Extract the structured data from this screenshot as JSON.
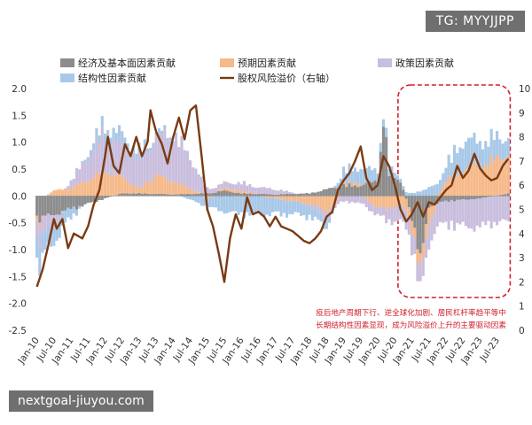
{
  "watermarks": {
    "top": "TG: MYYJJPP",
    "bottom": "nextgoal-jiuyou.com"
  },
  "chart_data": {
    "type": "bar",
    "stacked": true,
    "x_start": "2010-01",
    "x_end": "2023-11",
    "x_ticks": [
      "Jan-10",
      "Jul-10",
      "Jan-11",
      "Jul-11",
      "Jan-12",
      "Jul-12",
      "Jan-13",
      "Jul-13",
      "Jan-14",
      "Jul-14",
      "Jan-15",
      "Jul-15",
      "Jan-16",
      "Jul-16",
      "Jan-17",
      "Jul-17",
      "Jan-18",
      "Jul-18",
      "Jan-19",
      "Jul-19",
      "Jan-20",
      "Jul-20",
      "Jan-21",
      "Jul-21",
      "Jan-22",
      "Jul-22",
      "Jan-23",
      "Jul-23"
    ],
    "y_left": {
      "min": -2.5,
      "max": 2.0,
      "step": 0.5,
      "ticks": [
        "2.0",
        "1.5",
        "1.0",
        "0.5",
        "0.0",
        "-0.5",
        "-1.0",
        "-1.5",
        "-2.0",
        "-2.5"
      ]
    },
    "y_right": {
      "min": 0,
      "max": 10,
      "step": 1,
      "ticks": [
        "10",
        "9",
        "8",
        "7",
        "6",
        "5",
        "4",
        "3",
        "2",
        "1",
        "0"
      ]
    },
    "series": [
      {
        "name": "经济及基本面因素贡献",
        "kind": "bar",
        "color": "#8c8c8c",
        "anchors": [
          [
            "2010-01",
            -0.45
          ],
          [
            "2010-07",
            -0.35
          ],
          [
            "2011-01",
            -0.25
          ],
          [
            "2011-07",
            -0.15
          ],
          [
            "2012-01",
            -0.05
          ],
          [
            "2012-07",
            0.05
          ],
          [
            "2013-01",
            0.05
          ],
          [
            "2014-01",
            0.03
          ],
          [
            "2015-01",
            0.05
          ],
          [
            "2015-07",
            0.1
          ],
          [
            "2016-01",
            0.05
          ],
          [
            "2017-01",
            0.03
          ],
          [
            "2018-01",
            0.05
          ],
          [
            "2019-01",
            0.2
          ],
          [
            "2019-07",
            0.2
          ],
          [
            "2020-01",
            0.3
          ],
          [
            "2020-03",
            1.55
          ],
          [
            "2020-05",
            0.4
          ],
          [
            "2020-09",
            0.3
          ],
          [
            "2021-01",
            -0.4
          ],
          [
            "2021-04",
            -1.3
          ],
          [
            "2021-07",
            -0.2
          ],
          [
            "2022-01",
            -0.1
          ],
          [
            "2023-01",
            -0.05
          ],
          [
            "2023-11",
            0.05
          ]
        ]
      },
      {
        "name": "预期因素贡献",
        "kind": "bar",
        "color": "#f5b98a",
        "anchors": [
          [
            "2010-01",
            -0.1
          ],
          [
            "2010-07",
            0.1
          ],
          [
            "2011-01",
            0.15
          ],
          [
            "2011-07",
            0.3
          ],
          [
            "2012-01",
            0.5
          ],
          [
            "2012-07",
            0.3
          ],
          [
            "2013-01",
            0.1
          ],
          [
            "2013-07",
            0.35
          ],
          [
            "2014-01",
            0.25
          ],
          [
            "2014-07",
            0.1
          ],
          [
            "2015-01",
            -0.05
          ],
          [
            "2015-07",
            0.05
          ],
          [
            "2016-01",
            0.05
          ],
          [
            "2017-01",
            -0.05
          ],
          [
            "2018-01",
            -0.15
          ],
          [
            "2018-07",
            -0.3
          ],
          [
            "2019-01",
            0.05
          ],
          [
            "2019-07",
            0.05
          ],
          [
            "2020-01",
            -0.25
          ],
          [
            "2020-07",
            -0.2
          ],
          [
            "2021-01",
            -0.2
          ],
          [
            "2021-07",
            -0.3
          ],
          [
            "2022-01",
            0.3
          ],
          [
            "2022-07",
            0.5
          ],
          [
            "2023-01",
            0.6
          ],
          [
            "2023-07",
            0.7
          ],
          [
            "2023-11",
            0.75
          ]
        ]
      },
      {
        "name": "政策因素贡献",
        "kind": "bar",
        "color": "#c9bedd",
        "anchors": [
          [
            "2010-01",
            -0.35
          ],
          [
            "2010-07",
            -0.25
          ],
          [
            "2011-01",
            0.15
          ],
          [
            "2011-07",
            0.45
          ],
          [
            "2012-01",
            0.7
          ],
          [
            "2012-07",
            0.6
          ],
          [
            "2013-01",
            0.6
          ],
          [
            "2013-07",
            0.7
          ],
          [
            "2014-01",
            0.9
          ],
          [
            "2014-07",
            0.6
          ],
          [
            "2015-01",
            0.1
          ],
          [
            "2015-07",
            0.1
          ],
          [
            "2016-01",
            0.15
          ],
          [
            "2017-01",
            0.1
          ],
          [
            "2018-01",
            -0.05
          ],
          [
            "2018-07",
            -0.15
          ],
          [
            "2019-01",
            -0.1
          ],
          [
            "2019-07",
            -0.15
          ],
          [
            "2020-01",
            -0.15
          ],
          [
            "2020-07",
            -0.3
          ],
          [
            "2021-01",
            -0.35
          ],
          [
            "2021-07",
            -0.4
          ],
          [
            "2022-01",
            -0.45
          ],
          [
            "2022-07",
            -0.5
          ],
          [
            "2023-01",
            -0.55
          ],
          [
            "2023-07",
            -0.5
          ],
          [
            "2023-11",
            -0.5
          ]
        ]
      },
      {
        "name": "结构性因素贡献",
        "kind": "bar",
        "color": "#a8c8e8",
        "anchors": [
          [
            "2010-01",
            -0.5
          ],
          [
            "2010-07",
            -0.3
          ],
          [
            "2011-01",
            -0.2
          ],
          [
            "2011-07",
            0.1
          ],
          [
            "2012-01",
            0.2
          ],
          [
            "2012-07",
            0.2
          ],
          [
            "2013-01",
            0.1
          ],
          [
            "2014-01",
            0.05
          ],
          [
            "2015-01",
            -0.2
          ],
          [
            "2015-07",
            -0.3
          ],
          [
            "2016-01",
            -0.35
          ],
          [
            "2016-07",
            -0.35
          ],
          [
            "2017-01",
            -0.3
          ],
          [
            "2018-01",
            -0.2
          ],
          [
            "2018-07",
            -0.15
          ],
          [
            "2019-01",
            0.25
          ],
          [
            "2019-07",
            0.3
          ],
          [
            "2020-01",
            0.2
          ],
          [
            "2020-07",
            0.1
          ],
          [
            "2021-01",
            0.05
          ],
          [
            "2021-07",
            0.15
          ],
          [
            "2022-01",
            0.3
          ],
          [
            "2022-07",
            0.55
          ],
          [
            "2023-01",
            0.45
          ],
          [
            "2023-07",
            0.4
          ],
          [
            "2023-11",
            0.35
          ]
        ]
      },
      {
        "name": "股权风险溢价（右轴）",
        "kind": "line",
        "axis": "right",
        "color": "#7a3a12",
        "anchors": [
          [
            "2010-01",
            1.8
          ],
          [
            "2010-03",
            2.5
          ],
          [
            "2010-05",
            3.5
          ],
          [
            "2010-07",
            4.6
          ],
          [
            "2010-08",
            4.2
          ],
          [
            "2010-10",
            4.6
          ],
          [
            "2010-12",
            3.4
          ],
          [
            "2011-02",
            4.0
          ],
          [
            "2011-05",
            3.8
          ],
          [
            "2011-07",
            4.3
          ],
          [
            "2011-09",
            5.2
          ],
          [
            "2011-11",
            5.8
          ],
          [
            "2012-01",
            7.2
          ],
          [
            "2012-02",
            8.0
          ],
          [
            "2012-04",
            6.8
          ],
          [
            "2012-06",
            6.5
          ],
          [
            "2012-08",
            7.7
          ],
          [
            "2012-10",
            7.2
          ],
          [
            "2012-12",
            8.0
          ],
          [
            "2013-02",
            7.2
          ],
          [
            "2013-04",
            7.8
          ],
          [
            "2013-05",
            9.1
          ],
          [
            "2013-07",
            8.2
          ],
          [
            "2013-09",
            7.7
          ],
          [
            "2013-11",
            6.9
          ],
          [
            "2014-01",
            8.0
          ],
          [
            "2014-03",
            8.8
          ],
          [
            "2014-05",
            7.9
          ],
          [
            "2014-07",
            9.1
          ],
          [
            "2014-09",
            9.3
          ],
          [
            "2014-11",
            7.2
          ],
          [
            "2015-01",
            5.0
          ],
          [
            "2015-03",
            4.3
          ],
          [
            "2015-05",
            3.2
          ],
          [
            "2015-07",
            2.0
          ],
          [
            "2015-09",
            3.8
          ],
          [
            "2015-11",
            4.8
          ],
          [
            "2016-01",
            4.2
          ],
          [
            "2016-03",
            5.5
          ],
          [
            "2016-05",
            4.8
          ],
          [
            "2016-07",
            4.9
          ],
          [
            "2016-09",
            4.7
          ],
          [
            "2016-11",
            4.3
          ],
          [
            "2017-01",
            4.7
          ],
          [
            "2017-03",
            4.3
          ],
          [
            "2017-05",
            4.2
          ],
          [
            "2017-07",
            4.1
          ],
          [
            "2017-09",
            3.9
          ],
          [
            "2017-11",
            3.7
          ],
          [
            "2018-01",
            3.6
          ],
          [
            "2018-03",
            3.8
          ],
          [
            "2018-05",
            4.1
          ],
          [
            "2018-07",
            4.7
          ],
          [
            "2018-09",
            4.9
          ],
          [
            "2018-11",
            5.8
          ],
          [
            "2019-01",
            6.2
          ],
          [
            "2019-03",
            6.5
          ],
          [
            "2019-05",
            7.0
          ],
          [
            "2019-07",
            7.6
          ],
          [
            "2019-09",
            6.3
          ],
          [
            "2019-11",
            5.8
          ],
          [
            "2020-01",
            6.0
          ],
          [
            "2020-03",
            7.2
          ],
          [
            "2020-05",
            6.8
          ],
          [
            "2020-07",
            6.0
          ],
          [
            "2020-09",
            5.0
          ],
          [
            "2020-11",
            4.5
          ],
          [
            "2021-01",
            4.8
          ],
          [
            "2021-03",
            5.3
          ],
          [
            "2021-05",
            4.7
          ],
          [
            "2021-07",
            5.3
          ],
          [
            "2021-09",
            5.2
          ],
          [
            "2021-11",
            5.5
          ],
          [
            "2022-01",
            5.8
          ],
          [
            "2022-03",
            6.0
          ],
          [
            "2022-05",
            6.8
          ],
          [
            "2022-07",
            6.3
          ],
          [
            "2022-09",
            6.6
          ],
          [
            "2022-11",
            7.3
          ],
          [
            "2023-01",
            6.7
          ],
          [
            "2023-03",
            6.4
          ],
          [
            "2023-05",
            6.2
          ],
          [
            "2023-07",
            6.3
          ],
          [
            "2023-09",
            6.8
          ],
          [
            "2023-11",
            7.1
          ]
        ]
      }
    ],
    "highlight": {
      "from": "2020-10",
      "to": "2023-11",
      "style": "dashed-red"
    },
    "annotation": {
      "lines": [
        "疫后地产周期下行、逆全球化加剧、居民杠杆率趋平等中",
        "长期结构性因素显现，成为风险溢价上升的主要驱动因素"
      ],
      "color": "#d0202c"
    },
    "legend": {
      "placement": "top"
    }
  }
}
